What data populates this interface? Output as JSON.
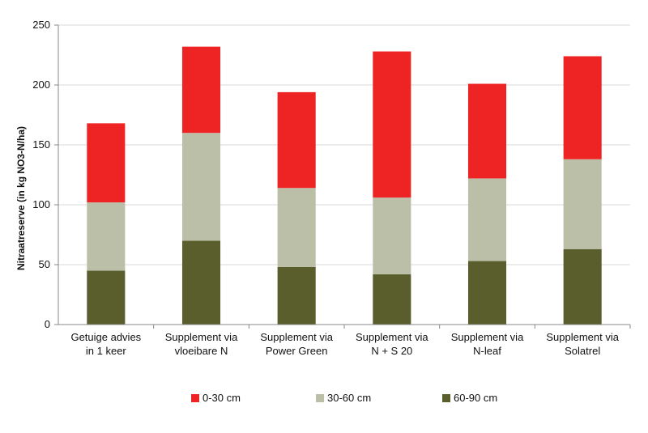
{
  "chart_data": {
    "type": "bar",
    "stacked": true,
    "title": "",
    "xlabel": "",
    "ylabel": "Nitraatreserve (in kg NO3-N/ha)",
    "ylim": [
      0,
      250
    ],
    "yticks": [
      0,
      50,
      100,
      150,
      200,
      250
    ],
    "grid": true,
    "legend_position": "bottom",
    "categories": [
      [
        "Getuige advies",
        "in 1 keer"
      ],
      [
        "Supplement via",
        "vloeibare N"
      ],
      [
        "Supplement via",
        "Power Green"
      ],
      [
        "Supplement via",
        "N + S 20"
      ],
      [
        "Supplement via",
        "N-leaf"
      ],
      [
        "Supplement via",
        "Solatrel"
      ]
    ],
    "series": [
      {
        "name": "60-90 cm",
        "color": "#5a5e2c",
        "values": [
          45,
          70,
          48,
          42,
          53,
          63
        ]
      },
      {
        "name": "30-60 cm",
        "color": "#bcbfa8",
        "values": [
          57,
          90,
          66,
          64,
          69,
          75
        ]
      },
      {
        "name": "0-30 cm",
        "color": "#ee2424",
        "values": [
          66,
          72,
          80,
          122,
          79,
          86
        ]
      }
    ],
    "legend_order": [
      "0-30 cm",
      "30-60 cm",
      "60-90 cm"
    ]
  }
}
